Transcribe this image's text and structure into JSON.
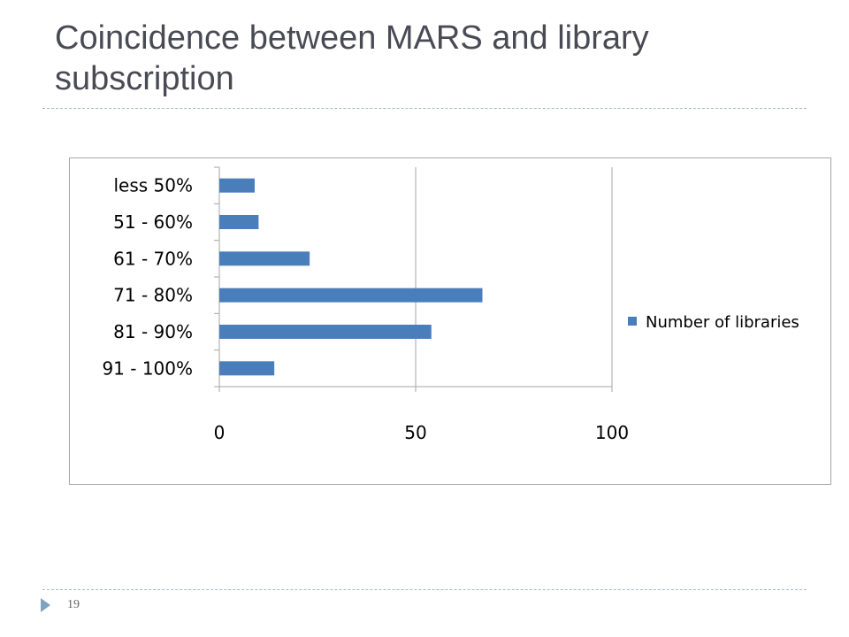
{
  "slide": {
    "title": "Coincidence between MARS and library subscription",
    "page_number": "19"
  },
  "colors": {
    "bar": "#4a7ebb",
    "gridline": "#a6a6a6",
    "rule": "#9fbcd0",
    "title": "#4a4a55"
  },
  "chart_data": {
    "type": "bar",
    "orientation": "horizontal",
    "categories": [
      "less  50%",
      "51 - 60%",
      "61 - 70%",
      "71 - 80%",
      "81 - 90%",
      "91 - 100%"
    ],
    "series": [
      {
        "name": "Number of libraries",
        "values": [
          9,
          10,
          23,
          67,
          54,
          14
        ],
        "color": "#4a7ebb"
      }
    ],
    "xlim": [
      0,
      100
    ],
    "xticks": [
      0,
      50,
      100
    ],
    "grid": "vertical major gridlines",
    "legend_position": "right"
  }
}
